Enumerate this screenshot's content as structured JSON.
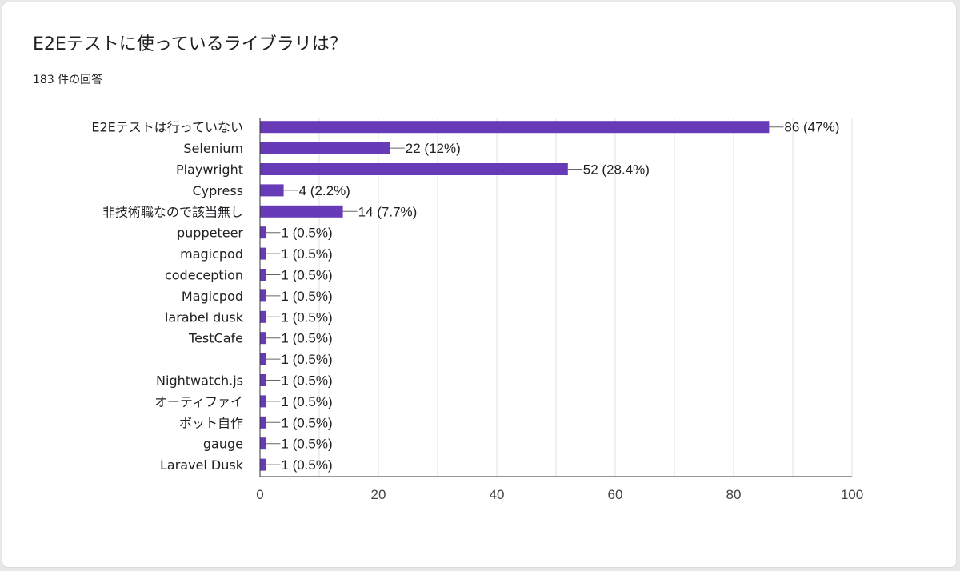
{
  "question": {
    "title": "E2Eテストに使っているライブラリは？",
    "response_count": "183 件の回答"
  },
  "colors": {
    "bar": "#673ab7",
    "grid": "#e0e0e0",
    "axis": "#333333",
    "leader": "#666666"
  },
  "chart_data": {
    "type": "bar",
    "orientation": "horizontal",
    "title": "E2Eテストに使っているライブラリは？",
    "xlim": [
      0,
      100
    ],
    "xticks": [
      0,
      20,
      40,
      60,
      80,
      100
    ],
    "grid": true,
    "categories": [
      "E2Eテストは行っていない",
      "Selenium",
      "Playwright",
      "Cypress",
      "非技術職なので該当無し",
      "puppeteer",
      "magicpod",
      "codeception",
      "Magicpod",
      "larabel dusk",
      "TestCafe",
      "",
      "Nightwatch.js",
      "オーティファイ",
      "ボット自作",
      "gauge",
      "Laravel Dusk"
    ],
    "values": [
      86,
      22,
      52,
      4,
      14,
      1,
      1,
      1,
      1,
      1,
      1,
      1,
      1,
      1,
      1,
      1,
      1
    ],
    "data_labels": [
      "86 (47%)",
      "22 (12%)",
      "52 (28.4%)",
      "4 (2.2%)",
      "14 (7.7%)",
      "1 (0.5%)",
      "1 (0.5%)",
      "1 (0.5%)",
      "1 (0.5%)",
      "1 (0.5%)",
      "1 (0.5%)",
      "1 (0.5%)",
      "1 (0.5%)",
      "1 (0.5%)",
      "1 (0.5%)",
      "1 (0.5%)",
      "1 (0.5%)"
    ]
  }
}
